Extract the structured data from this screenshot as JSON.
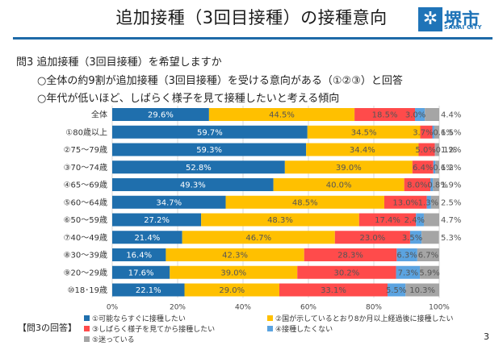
{
  "slide": {
    "title": "追加接種（3回目接種）の接種意向",
    "logo": {
      "mark": "✲",
      "text": "堺市",
      "subtext": "SAKAI CITY"
    },
    "question": "問3  追加接種（3回目接種）を希望しますか",
    "bullets": [
      "○全体の約9割が追加接種（3回目接種）を受ける意向がある（①②③）と回答",
      "○年代が低いほど、しばらく様子を見て接種したいと考える傾向"
    ],
    "answer_label": "【問3の回答】",
    "page_number": "3"
  },
  "chart_data": {
    "type": "bar",
    "orientation": "horizontal",
    "stacked": true,
    "title": "",
    "xlabel": "",
    "ylabel": "",
    "xlim": [
      0,
      100
    ],
    "x_ticks": [
      "0%",
      "20%",
      "40%",
      "60%",
      "80%",
      "100%"
    ],
    "grid": true,
    "legend_position": "bottom",
    "categories": [
      "全体",
      "①80歳以上",
      "②75～79歳",
      "③70～74歳",
      "④65～69歳",
      "⑤60～64歳",
      "⑥50～59歳",
      "⑦40～49歳",
      "⑧30～39歳",
      "⑨20～29歳",
      "⑩18･19歳"
    ],
    "series": [
      {
        "name": "①可能ならすぐに接種したい",
        "color": "#1f6fad",
        "label_color": "#ffffff",
        "values": [
          29.6,
          59.7,
          59.3,
          52.8,
          49.3,
          34.7,
          27.2,
          21.4,
          16.4,
          17.6,
          22.1
        ]
      },
      {
        "name": "②国が示しているとおり8か月以上経過後に接種したい",
        "color": "#ffc000",
        "label_color": "#555555",
        "values": [
          44.5,
          34.5,
          34.4,
          39.0,
          40.0,
          48.5,
          48.3,
          46.7,
          42.3,
          39.0,
          29.0
        ]
      },
      {
        "name": "③しばらく様子を見てから接種したい",
        "color": "#ff4b4b",
        "label_color": "#555555",
        "values": [
          18.5,
          3.7,
          5.0,
          6.4,
          8.0,
          13.0,
          17.4,
          23.0,
          28.3,
          30.2,
          33.1
        ]
      },
      {
        "name": "④接種したくない",
        "color": "#5ba3e0",
        "label_color": "#555555",
        "values": [
          3.0,
          0.6,
          0.1,
          0.6,
          0.8,
          1.3,
          2.4,
          3.5,
          6.3,
          7.3,
          5.5
        ]
      },
      {
        "name": "⑤迷っている",
        "color": "#a5a5a5",
        "label_color": "#555555",
        "values": [
          4.4,
          1.5,
          1.2,
          1.2,
          1.9,
          2.5,
          4.7,
          5.3,
          6.7,
          5.9,
          10.3
        ]
      }
    ],
    "legend_order": [
      0,
      1,
      2,
      3,
      4
    ]
  }
}
